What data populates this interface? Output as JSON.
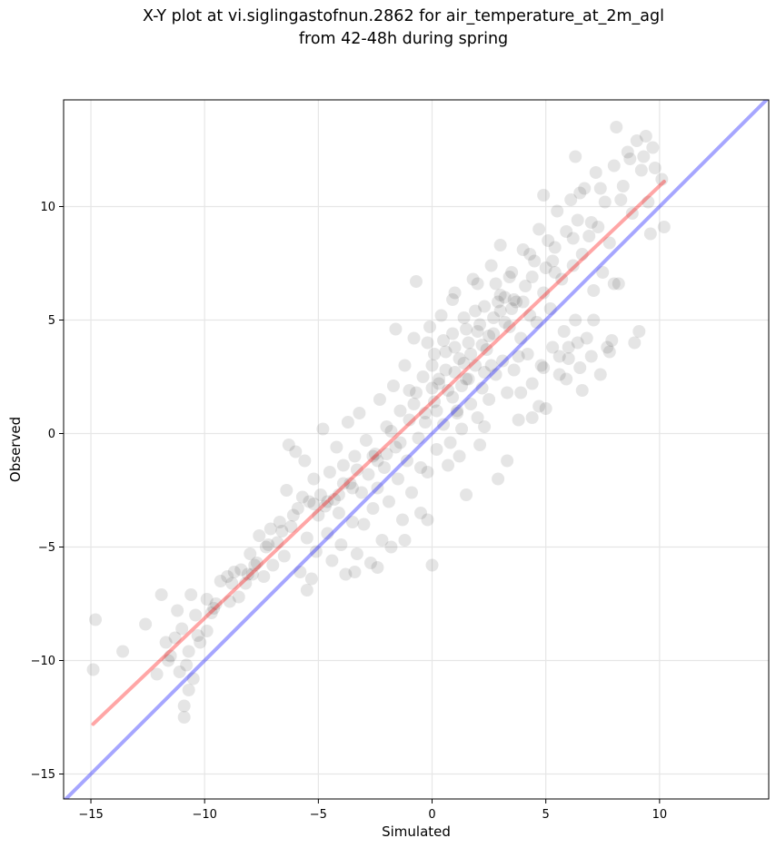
{
  "chart_data": {
    "type": "scatter",
    "title": "X-Y plot at vi.siglingastofnun.2862 for air_temperature_at_2m_agl",
    "subtitle": "from 42-48h during spring",
    "xlabel": "Simulated",
    "ylabel": "Observed",
    "xlim": [
      -16.2,
      14.8
    ],
    "ylim": [
      -16.1,
      14.7
    ],
    "xticks": [
      -15,
      -10,
      -5,
      0,
      5,
      10
    ],
    "yticks": [
      -15,
      -10,
      -5,
      0,
      5,
      10
    ],
    "xtick_labels": [
      "−15",
      "−10",
      "−5",
      "0",
      "5",
      "10"
    ],
    "ytick_labels": [
      "−15",
      "−10",
      "−5",
      "0",
      "5",
      "10"
    ],
    "grid": true,
    "legend": "none",
    "points_note_colors": {
      "points": "#000000",
      "fit_line": "#ff0000",
      "identity_line": "#0000ff"
    },
    "regression_line": {
      "x": [
        -14.9,
        10.2
      ],
      "y": [
        -12.8,
        11.1
      ],
      "color": "#ff0000"
    },
    "identity_line": {
      "x": [
        -16.2,
        14.8
      ],
      "y": [
        -16.2,
        14.8
      ],
      "color": "#0000ff"
    },
    "points": [
      [
        -14.9,
        -10.4
      ],
      [
        -14.8,
        -8.2
      ],
      [
        -13.6,
        -9.6
      ],
      [
        -12.6,
        -8.4
      ],
      [
        -12.1,
        -10.6
      ],
      [
        -11.9,
        -7.1
      ],
      [
        -11.7,
        -9.2
      ],
      [
        -11.5,
        -9.8
      ],
      [
        -11.3,
        -9.0
      ],
      [
        -11.1,
        -10.5
      ],
      [
        -11.2,
        -7.8
      ],
      [
        -10.9,
        -12.0
      ],
      [
        -10.9,
        -12.5
      ],
      [
        -10.7,
        -11.3
      ],
      [
        -10.7,
        -9.6
      ],
      [
        -10.6,
        -7.1
      ],
      [
        -10.4,
        -8.0
      ],
      [
        -10.3,
        -8.9
      ],
      [
        -10.8,
        -10.2
      ],
      [
        -11.0,
        -8.6
      ],
      [
        -10.5,
        -10.8
      ],
      [
        -9.9,
        -7.3
      ],
      [
        -9.7,
        -7.9
      ],
      [
        -9.5,
        -7.5
      ],
      [
        -9.3,
        -6.5
      ],
      [
        -9.0,
        -6.3
      ],
      [
        -8.9,
        -7.4
      ],
      [
        -8.7,
        -6.1
      ],
      [
        -8.5,
        -7.2
      ],
      [
        -8.4,
        -6.0
      ],
      [
        -8.2,
        -6.6
      ],
      [
        -8.0,
        -5.3
      ],
      [
        -7.9,
        -6.2
      ],
      [
        -7.7,
        -5.7
      ],
      [
        -7.6,
        -4.5
      ],
      [
        -7.4,
        -6.3
      ],
      [
        -7.3,
        -5.0
      ],
      [
        -7.1,
        -4.2
      ],
      [
        -7.0,
        -5.8
      ],
      [
        -6.8,
        -4.8
      ],
      [
        -6.7,
        -3.9
      ],
      [
        -6.5,
        -5.4
      ],
      [
        -6.4,
        -2.5
      ],
      [
        -6.3,
        -0.5
      ],
      [
        -6.2,
        -4.1
      ],
      [
        -6.0,
        -0.8
      ],
      [
        -5.9,
        -3.3
      ],
      [
        -5.8,
        -6.1
      ],
      [
        -5.6,
        -1.2
      ],
      [
        -5.5,
        -4.6
      ],
      [
        -5.4,
        -3.0
      ],
      [
        -5.3,
        -6.4
      ],
      [
        -5.2,
        -2.0
      ],
      [
        -5.1,
        -5.2
      ],
      [
        -5.0,
        -3.6
      ],
      [
        -4.9,
        -2.7
      ],
      [
        -4.8,
        0.2
      ],
      [
        -4.7,
        -3.2
      ],
      [
        -4.6,
        -4.4
      ],
      [
        -4.5,
        -1.7
      ],
      [
        -4.4,
        -5.6
      ],
      [
        -4.3,
        -2.9
      ],
      [
        -4.2,
        -0.6
      ],
      [
        -4.1,
        -3.5
      ],
      [
        -4.0,
        -4.9
      ],
      [
        -3.9,
        -1.4
      ],
      [
        -3.8,
        -6.2
      ],
      [
        -3.7,
        0.5
      ],
      [
        -3.6,
        -2.2
      ],
      [
        -3.5,
        -3.9
      ],
      [
        -3.4,
        -1.0
      ],
      [
        -3.3,
        -5.3
      ],
      [
        -3.2,
        0.9
      ],
      [
        -3.1,
        -2.6
      ],
      [
        -3.0,
        -4.0
      ],
      [
        -2.9,
        -0.3
      ],
      [
        -2.8,
        -1.8
      ],
      [
        -2.7,
        -5.7
      ],
      [
        -2.6,
        -3.3
      ],
      [
        -2.5,
        -0.9
      ],
      [
        -2.4,
        -2.4
      ],
      [
        -2.3,
        1.5
      ],
      [
        -2.2,
        -4.7
      ],
      [
        -2.1,
        -1.5
      ],
      [
        -2.0,
        0.3
      ],
      [
        -1.9,
        -3.0
      ],
      [
        -1.8,
        -5.0
      ],
      [
        -1.7,
        2.1
      ],
      [
        -1.6,
        -0.6
      ],
      [
        -1.5,
        -2.0
      ],
      [
        -1.4,
        1.0
      ],
      [
        -1.3,
        -3.8
      ],
      [
        -1.2,
        3.0
      ],
      [
        -1.1,
        -1.2
      ],
      [
        -1.0,
        0.6
      ],
      [
        -0.9,
        -2.6
      ],
      [
        -0.8,
        4.2
      ],
      [
        -0.7,
        1.8
      ],
      [
        -0.6,
        -0.2
      ],
      [
        -0.5,
        -3.5
      ],
      [
        -0.4,
        2.5
      ],
      [
        -0.3,
        0.9
      ],
      [
        -0.2,
        -1.7
      ],
      [
        -0.1,
        4.7
      ],
      [
        0.0,
        3.0
      ],
      [
        0.0,
        -5.8
      ],
      [
        0.1,
        1.4
      ],
      [
        0.2,
        -0.7
      ],
      [
        0.3,
        2.2
      ],
      [
        0.4,
        5.2
      ],
      [
        0.5,
        0.4
      ],
      [
        0.6,
        3.6
      ],
      [
        0.7,
        1.9
      ],
      [
        0.8,
        -0.4
      ],
      [
        0.9,
        4.4
      ],
      [
        1.0,
        2.7
      ],
      [
        1.0,
        6.2
      ],
      [
        1.1,
        1.0
      ],
      [
        1.2,
        3.3
      ],
      [
        1.3,
        0.2
      ],
      [
        1.4,
        5.1
      ],
      [
        1.5,
        2.4
      ],
      [
        1.5,
        -2.7
      ],
      [
        1.6,
        4.0
      ],
      [
        1.7,
        1.3
      ],
      [
        1.8,
        6.8
      ],
      [
        1.9,
        3.0
      ],
      [
        2.0,
        0.7
      ],
      [
        2.1,
        4.8
      ],
      [
        2.2,
        2.0
      ],
      [
        2.3,
        5.6
      ],
      [
        2.4,
        3.7
      ],
      [
        2.5,
        1.5
      ],
      [
        2.6,
        7.4
      ],
      [
        2.7,
        4.4
      ],
      [
        2.8,
        2.6
      ],
      [
        2.9,
        -2.0
      ],
      [
        3.0,
        5.4
      ],
      [
        3.0,
        8.3
      ],
      [
        3.1,
        3.2
      ],
      [
        3.2,
        6.0
      ],
      [
        3.3,
        1.8
      ],
      [
        3.4,
        4.7
      ],
      [
        3.5,
        7.1
      ],
      [
        3.6,
        2.8
      ],
      [
        3.7,
        5.8
      ],
      [
        3.8,
        0.6
      ],
      [
        3.9,
        4.2
      ],
      [
        4.0,
        8.1
      ],
      [
        4.1,
        6.5
      ],
      [
        4.2,
        3.5
      ],
      [
        4.3,
        5.2
      ],
      [
        4.4,
        2.2
      ],
      [
        4.5,
        7.6
      ],
      [
        4.6,
        4.9
      ],
      [
        4.7,
        9.0
      ],
      [
        4.8,
        3.0
      ],
      [
        4.9,
        6.2
      ],
      [
        5.0,
        1.1
      ],
      [
        5.1,
        8.5
      ],
      [
        5.2,
        5.5
      ],
      [
        5.3,
        3.8
      ],
      [
        5.4,
        7.1
      ],
      [
        5.5,
        9.8
      ],
      [
        5.6,
        2.6
      ],
      [
        5.7,
        6.8
      ],
      [
        5.8,
        4.5
      ],
      [
        5.9,
        8.9
      ],
      [
        6.0,
        3.3
      ],
      [
        6.1,
        10.3
      ],
      [
        6.2,
        7.4
      ],
      [
        6.3,
        5.0
      ],
      [
        6.4,
        9.4
      ],
      [
        6.5,
        2.9
      ],
      [
        6.6,
        7.9
      ],
      [
        6.7,
        10.8
      ],
      [
        6.8,
        4.2
      ],
      [
        6.9,
        8.7
      ],
      [
        7.0,
        3.4
      ],
      [
        7.1,
        6.3
      ],
      [
        7.2,
        11.5
      ],
      [
        7.3,
        9.1
      ],
      [
        7.4,
        2.6
      ],
      [
        7.5,
        7.1
      ],
      [
        7.6,
        10.2
      ],
      [
        7.7,
        3.8
      ],
      [
        7.8,
        8.4
      ],
      [
        7.9,
        4.1
      ],
      [
        8.0,
        11.8
      ],
      [
        8.1,
        13.5
      ],
      [
        8.2,
        6.6
      ],
      [
        8.4,
        10.9
      ],
      [
        8.6,
        12.4
      ],
      [
        8.8,
        9.7
      ],
      [
        9.0,
        12.9
      ],
      [
        9.1,
        4.5
      ],
      [
        9.2,
        11.6
      ],
      [
        9.4,
        13.1
      ],
      [
        9.5,
        10.2
      ],
      [
        9.6,
        8.8
      ],
      [
        9.8,
        11.7
      ],
      [
        10.2,
        9.1
      ],
      [
        10.1,
        11.2
      ],
      [
        9.3,
        12.2
      ],
      [
        6.3,
        12.2
      ],
      [
        4.9,
        10.5
      ],
      [
        2.0,
        6.6
      ],
      [
        -0.7,
        6.7
      ],
      [
        -1.6,
        4.6
      ],
      [
        0.5,
        4.1
      ],
      [
        1.7,
        3.5
      ],
      [
        2.2,
        3.9
      ],
      [
        3.5,
        5.5
      ],
      [
        3.2,
        4.9
      ],
      [
        2.9,
        5.8
      ],
      [
        1.3,
        2.1
      ],
      [
        0.9,
        1.6
      ],
      [
        1.6,
        2.4
      ],
      [
        2.3,
        2.7
      ],
      [
        2.6,
        3.0
      ],
      [
        0.2,
        1.0
      ],
      [
        -0.3,
        0.5
      ],
      [
        1.1,
        0.9
      ],
      [
        0.6,
        2.8
      ],
      [
        -1.0,
        1.9
      ],
      [
        -2.0,
        -0.9
      ],
      [
        -3.3,
        -1.6
      ],
      [
        -4.1,
        -2.7
      ],
      [
        -5.2,
        -3.1
      ],
      [
        -6.1,
        -3.6
      ],
      [
        -7.2,
        -4.9
      ],
      [
        -8.1,
        -6.2
      ],
      [
        -8.8,
        -6.6
      ],
      [
        -9.6,
        -7.7
      ],
      [
        -4.6,
        -3.0
      ],
      [
        -3.9,
        -2.2
      ],
      [
        -2.6,
        -1.0
      ],
      [
        -1.8,
        0.1
      ],
      [
        -0.8,
        1.3
      ],
      [
        0.3,
        2.4
      ],
      [
        1.4,
        3.1
      ],
      [
        2.5,
        4.3
      ],
      [
        3.6,
        5.9
      ],
      [
        4.4,
        6.9
      ],
      [
        5.3,
        7.6
      ],
      [
        6.2,
        8.6
      ],
      [
        7.0,
        9.3
      ],
      [
        8.3,
        10.3
      ],
      [
        3.0,
        6.1
      ],
      [
        4.0,
        5.8
      ],
      [
        5.0,
        7.3
      ],
      [
        2.0,
        4.5
      ],
      [
        1.0,
        3.8
      ],
      [
        0.0,
        2.0
      ],
      [
        -1.4,
        -0.4
      ],
      [
        -2.4,
        -1.2
      ],
      [
        -3.5,
        -2.4
      ],
      [
        -5.7,
        -2.8
      ],
      [
        -6.6,
        -4.3
      ],
      [
        -7.8,
        -5.8
      ],
      [
        3.8,
        3.4
      ],
      [
        5.6,
        3.4
      ],
      [
        6.4,
        4.0
      ],
      [
        7.8,
        3.6
      ],
      [
        8.9,
        4.0
      ],
      [
        4.4,
        0.7
      ],
      [
        3.3,
        -1.2
      ],
      [
        2.1,
        -0.5
      ],
      [
        0.7,
        -1.4
      ],
      [
        -0.2,
        -3.8
      ],
      [
        -1.2,
        -4.7
      ],
      [
        -2.4,
        -5.9
      ],
      [
        -3.4,
        -6.1
      ],
      [
        -5.5,
        -6.9
      ],
      [
        -0.5,
        -1.5
      ],
      [
        1.2,
        -1.0
      ],
      [
        2.3,
        0.3
      ],
      [
        3.9,
        1.8
      ],
      [
        4.9,
        2.9
      ],
      [
        6.0,
        3.8
      ],
      [
        7.1,
        5.0
      ],
      [
        8.0,
        6.6
      ],
      [
        5.9,
        2.4
      ],
      [
        6.6,
        1.9
      ],
      [
        4.7,
        1.2
      ],
      [
        1.9,
        5.4
      ],
      [
        2.8,
        6.6
      ],
      [
        0.9,
        5.9
      ],
      [
        -0.2,
        4.0
      ],
      [
        0.1,
        3.5
      ],
      [
        1.5,
        4.6
      ],
      [
        2.7,
        5.1
      ],
      [
        3.4,
        6.9
      ],
      [
        4.3,
        7.9
      ],
      [
        5.4,
        8.2
      ],
      [
        6.5,
        10.6
      ],
      [
        7.4,
        10.8
      ],
      [
        8.7,
        12.1
      ],
      [
        9.7,
        12.6
      ],
      [
        -11.6,
        -10.0
      ],
      [
        -10.2,
        -9.2
      ],
      [
        -9.9,
        -8.7
      ]
    ]
  }
}
